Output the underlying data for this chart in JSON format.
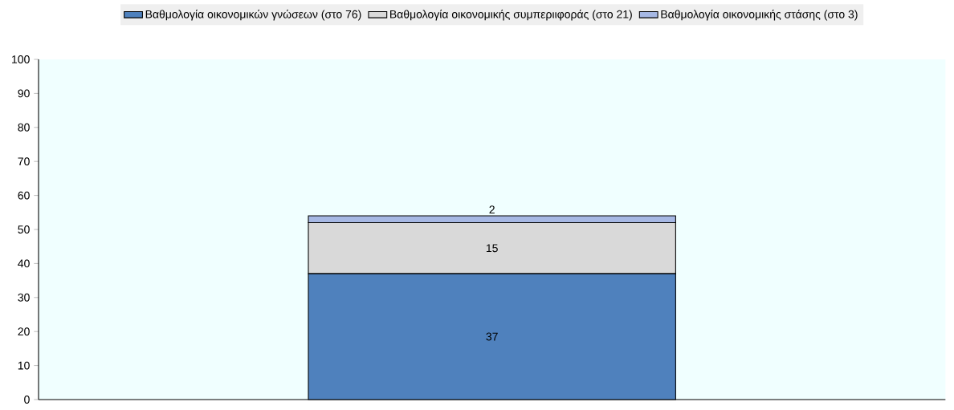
{
  "chart_data": {
    "type": "bar",
    "stacked": true,
    "categories": [
      null
    ],
    "series": [
      {
        "name": "Βαθμολογία οικονομικών γνώσεων (στο 76)",
        "color": "#4f81bd",
        "values": [
          37
        ]
      },
      {
        "name": "Βαθμολογία οικονομικής συμπεριιφοράς (στο 21)",
        "color": "#d9d9d9",
        "values": [
          15
        ]
      },
      {
        "name": "Βαθμολογία οικονομικής στάσης (στο 3)",
        "color": "#a6b8e4",
        "values": [
          2
        ]
      }
    ],
    "ylim": [
      0,
      100
    ],
    "yticks": [
      0,
      10,
      20,
      30,
      40,
      50,
      60,
      70,
      80,
      90,
      100
    ],
    "data_labels": true,
    "legend": "top"
  }
}
